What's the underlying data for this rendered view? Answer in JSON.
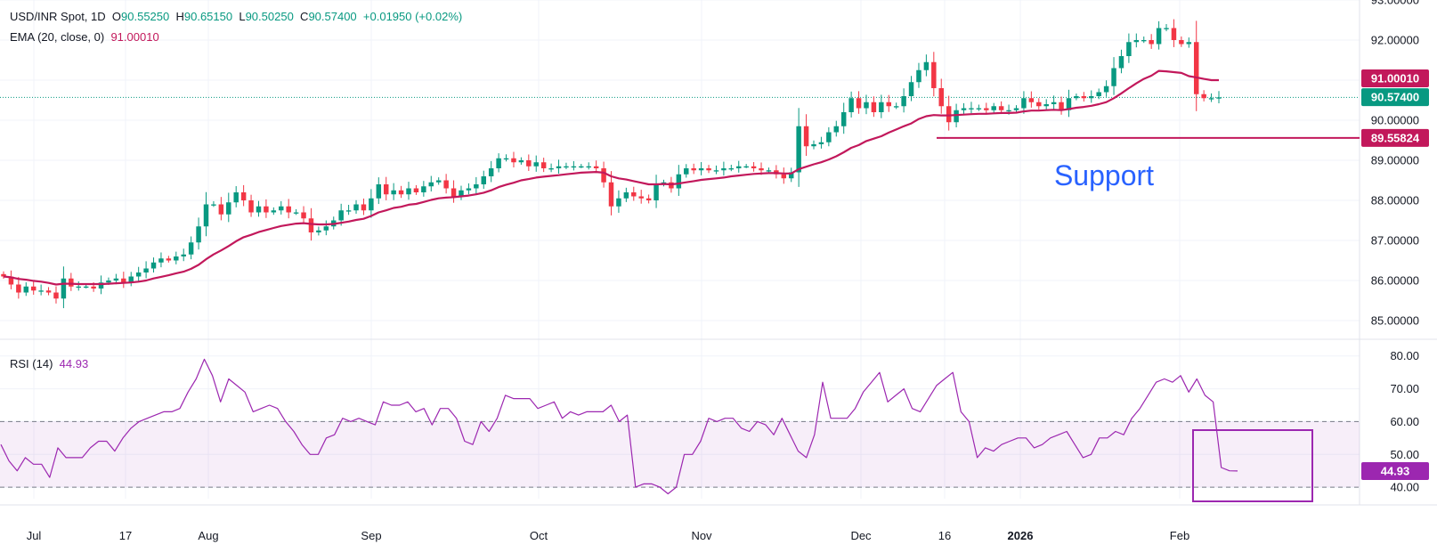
{
  "header": {
    "symbol": "USD/INR Spot, 1D",
    "open_label": "O",
    "open": "90.55250",
    "high_label": "H",
    "high": "90.65150",
    "low_label": "L",
    "low": "90.50250",
    "close_label": "C",
    "close": "90.57400",
    "change": "+0.01950 (+0.02%)",
    "ema_label": "EMA (20, close, 0)",
    "ema_value": "91.00010",
    "rsi_label": "RSI (14)",
    "rsi_value": "44.93"
  },
  "colors": {
    "up": "#089981",
    "down": "#f23645",
    "ema": "#c2185b",
    "rsi": "#9c27b0",
    "support": "#c2185b",
    "annotation": "#2962ff",
    "grid": "#f0f3fa"
  },
  "chart_data": [
    {
      "type": "candlestick",
      "title": "USD/INR Spot, 1D",
      "ylim": [
        84.6,
        93.0
      ],
      "y_ticks": [
        "93.00000",
        "92.00000",
        "91.00000",
        "90.00000",
        "89.00000",
        "88.00000",
        "87.00000",
        "86.00000",
        "85.00000"
      ],
      "x_ticks": [
        "Jul",
        "17",
        "Aug",
        "Sep",
        "Oct",
        "Nov",
        "Dec",
        "16",
        "2026",
        "Feb"
      ],
      "price_tags": {
        "ema": "91.00010",
        "last": "90.57400",
        "support": "89.55824"
      },
      "support_level": 89.558,
      "annotation": "Support",
      "close": [
        86.1,
        85.9,
        85.7,
        85.85,
        85.75,
        85.75,
        85.7,
        85.55,
        86.05,
        85.85,
        85.85,
        85.85,
        85.8,
        85.95,
        86.0,
        86.05,
        85.95,
        86.1,
        86.2,
        86.3,
        86.45,
        86.55,
        86.5,
        86.6,
        86.65,
        86.95,
        87.35,
        87.9,
        87.9,
        87.65,
        87.95,
        88.2,
        88.0,
        87.7,
        87.85,
        87.7,
        87.75,
        87.85,
        87.7,
        87.7,
        87.55,
        87.2,
        87.25,
        87.35,
        87.5,
        87.75,
        87.75,
        87.9,
        87.75,
        88.05,
        88.4,
        88.15,
        88.25,
        88.15,
        88.3,
        88.2,
        88.35,
        88.45,
        88.5,
        88.3,
        88.1,
        88.25,
        88.3,
        88.4,
        88.6,
        88.8,
        89.05,
        89.05,
        88.95,
        89.0,
        88.85,
        88.95,
        88.8,
        88.8,
        88.85,
        88.85,
        88.85,
        88.85,
        88.85,
        88.8,
        88.45,
        87.85,
        88.05,
        88.2,
        88.1,
        88.05,
        88.0,
        88.4,
        88.45,
        88.3,
        88.65,
        88.8,
        88.75,
        88.8,
        88.75,
        88.75,
        88.8,
        88.8,
        88.85,
        88.85,
        88.8,
        88.75,
        88.75,
        88.65,
        88.55,
        88.7,
        89.85,
        89.35,
        89.4,
        89.45,
        89.7,
        89.85,
        90.2,
        90.55,
        90.3,
        90.45,
        90.2,
        90.45,
        90.35,
        90.35,
        90.6,
        90.95,
        91.25,
        91.45,
        90.8,
        90.35,
        89.95,
        90.25,
        90.3,
        90.3,
        90.3,
        90.25,
        90.35,
        90.25,
        90.25,
        90.3,
        90.55,
        90.45,
        90.35,
        90.4,
        90.45,
        90.25,
        90.55,
        90.6,
        90.55,
        90.6,
        90.7,
        90.85,
        91.3,
        91.6,
        91.95,
        92.0,
        92.0,
        91.9,
        92.3,
        92.3,
        92.0,
        91.9,
        91.95,
        90.65,
        90.55,
        90.55,
        90.57
      ],
      "ema": [
        86.1,
        86.08,
        86.04,
        86.02,
        85.99,
        85.97,
        85.94,
        85.9,
        85.92,
        85.92,
        85.91,
        85.91,
        85.91,
        85.91,
        85.92,
        85.93,
        85.94,
        85.95,
        85.97,
        86.0,
        86.05,
        86.09,
        86.13,
        86.18,
        86.22,
        86.29,
        86.39,
        86.53,
        86.65,
        86.75,
        86.86,
        86.98,
        87.08,
        87.14,
        87.21,
        87.26,
        87.31,
        87.36,
        87.39,
        87.42,
        87.43,
        87.41,
        87.4,
        87.4,
        87.41,
        87.44,
        87.47,
        87.51,
        87.54,
        87.61,
        87.7,
        87.75,
        87.81,
        87.84,
        87.89,
        87.91,
        87.96,
        88.01,
        88.05,
        88.07,
        88.08,
        88.1,
        88.12,
        88.15,
        88.19,
        88.25,
        88.33,
        88.39,
        88.44,
        88.5,
        88.53,
        88.57,
        88.59,
        88.61,
        88.63,
        88.65,
        88.67,
        88.69,
        88.7,
        88.71,
        88.69,
        88.6,
        88.55,
        88.52,
        88.48,
        88.44,
        88.4,
        88.4,
        88.41,
        88.4,
        88.42,
        88.45,
        88.48,
        88.51,
        88.53,
        88.55,
        88.57,
        88.6,
        88.62,
        88.64,
        88.66,
        88.67,
        88.68,
        88.68,
        88.67,
        88.67,
        88.78,
        88.84,
        88.9,
        88.95,
        89.02,
        89.1,
        89.2,
        89.31,
        89.38,
        89.48,
        89.54,
        89.6,
        89.69,
        89.77,
        89.85,
        89.92,
        90.03,
        90.1,
        90.13,
        90.12,
        90.12,
        90.13,
        90.14,
        90.15,
        90.16,
        90.16,
        90.17,
        90.18,
        90.18,
        90.19,
        90.22,
        90.24,
        90.24,
        90.25,
        90.26,
        90.25,
        90.28,
        90.31,
        90.33,
        90.36,
        90.4,
        90.45,
        90.55,
        90.67,
        90.8,
        90.92,
        91.03,
        91.11,
        91.23,
        91.22,
        91.2,
        91.18,
        91.1,
        91.07,
        91.03,
        91.0,
        91.0
      ]
    },
    {
      "type": "line",
      "title": "RSI (14)",
      "ylim": [
        36.5,
        84
      ],
      "y_ticks": [
        "80.00",
        "70.00",
        "60.00",
        "50.00",
        "40.00"
      ],
      "band": [
        40,
        60
      ],
      "last_value": "44.93",
      "values": [
        53,
        48,
        45,
        49,
        47,
        47,
        43,
        52,
        49,
        49,
        49,
        52,
        54,
        54,
        51,
        55,
        58,
        60,
        61,
        62,
        63,
        63,
        64,
        69,
        73,
        79,
        74,
        66,
        73,
        71,
        69,
        63,
        64,
        65,
        64,
        60,
        57,
        53,
        50,
        50,
        55,
        56,
        61,
        60,
        61,
        60,
        59,
        66,
        65,
        65,
        66,
        63,
        64,
        59,
        64,
        64,
        61,
        54,
        53,
        60,
        57,
        61,
        68,
        67,
        67,
        67,
        64,
        65,
        66,
        61,
        63,
        62,
        63,
        63,
        63,
        65,
        60,
        62,
        40,
        41,
        41,
        40,
        38,
        40,
        50,
        50,
        54,
        61,
        60,
        61,
        61,
        58,
        57,
        60,
        59,
        56,
        61,
        56,
        51,
        49,
        56,
        72,
        61,
        61,
        61,
        64,
        69,
        72,
        75,
        66,
        68,
        70,
        64,
        63,
        67,
        71,
        73,
        75,
        63,
        60,
        49,
        52,
        51,
        53,
        54,
        55,
        55,
        52,
        53,
        55,
        56,
        57,
        53,
        49,
        50,
        55,
        55,
        57,
        56,
        61,
        64,
        68,
        72,
        73,
        72,
        74,
        69,
        73,
        68,
        66,
        46,
        45,
        44.93
      ]
    }
  ]
}
